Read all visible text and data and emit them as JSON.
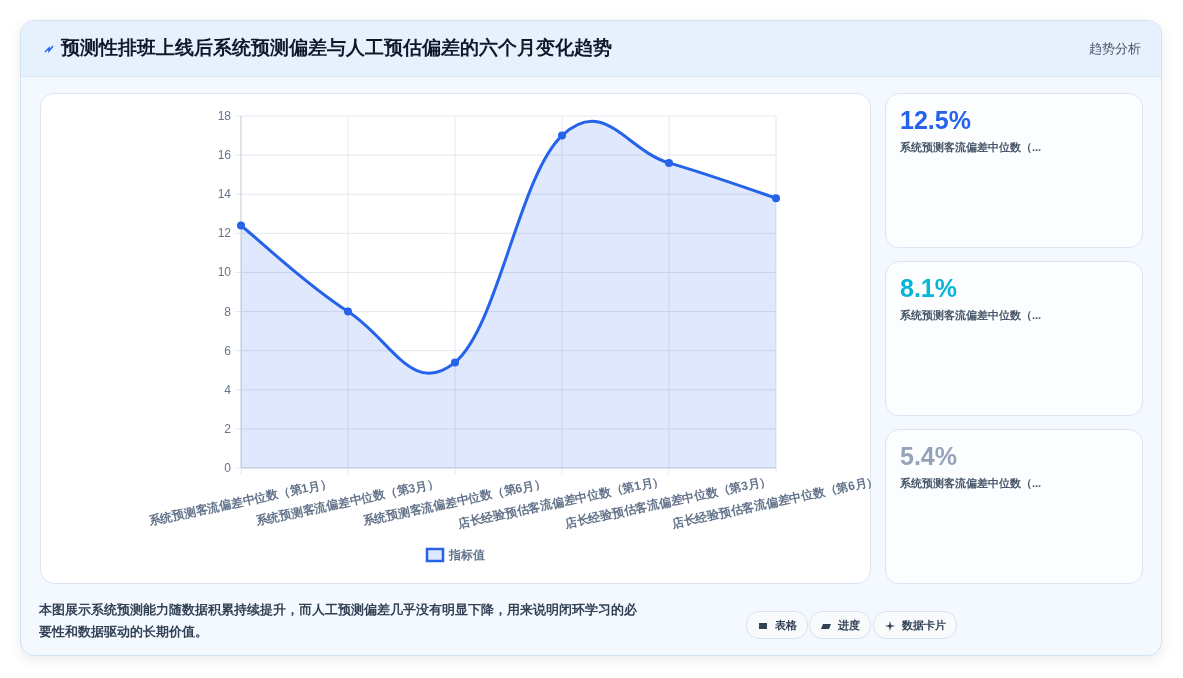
{
  "chart_data": [
    {
      "type": "area",
      "title": "预测性排班上线后系统预测偏差与人工预估偏差的六个月变化趋势",
      "categories": [
        "系统预测客流偏差中位数（第1月）",
        "系统预测客流偏差中位数（第3月）",
        "系统预测客流偏差中位数（第6月）",
        "店长经验预估客流偏差中位数（第1月）",
        "店长经验预估客流偏差中位数（第3月）",
        "店长经验预估客流偏差中位数（第6月）"
      ],
      "series": [
        {
          "name": "指标值",
          "color": "#2563eb",
          "values": [
            12.4,
            8.0,
            5.4,
            17.0,
            15.6,
            13.8
          ]
        }
      ],
      "ylim": [
        0,
        18
      ],
      "yticks": [
        0,
        2,
        4,
        6,
        8,
        10,
        12,
        14,
        16,
        18
      ],
      "grid": true,
      "legend": "bottom",
      "marker": "circle",
      "line_style": "solid",
      "annotations": [
        "趋势分析",
        "本图展示系统预测能力随数据积累持续提升，而人工预测偏差几乎没有明显下降，用来说明闭环学习的必要性和数据驱动的长期价值。",
        "表格",
        "进度",
        "数据卡片"
      ]
    },
    {
      "type": "other",
      "title": "12.5%",
      "subtitle": "系统预测客流偏差中位数（..."
    },
    {
      "type": "other",
      "title": "8.1%",
      "subtitle": "系统预测客流偏差中位数（..."
    },
    {
      "type": "other",
      "title": "5.4%",
      "subtitle": "系统预测客流偏差中位数（..."
    }
  ]
}
